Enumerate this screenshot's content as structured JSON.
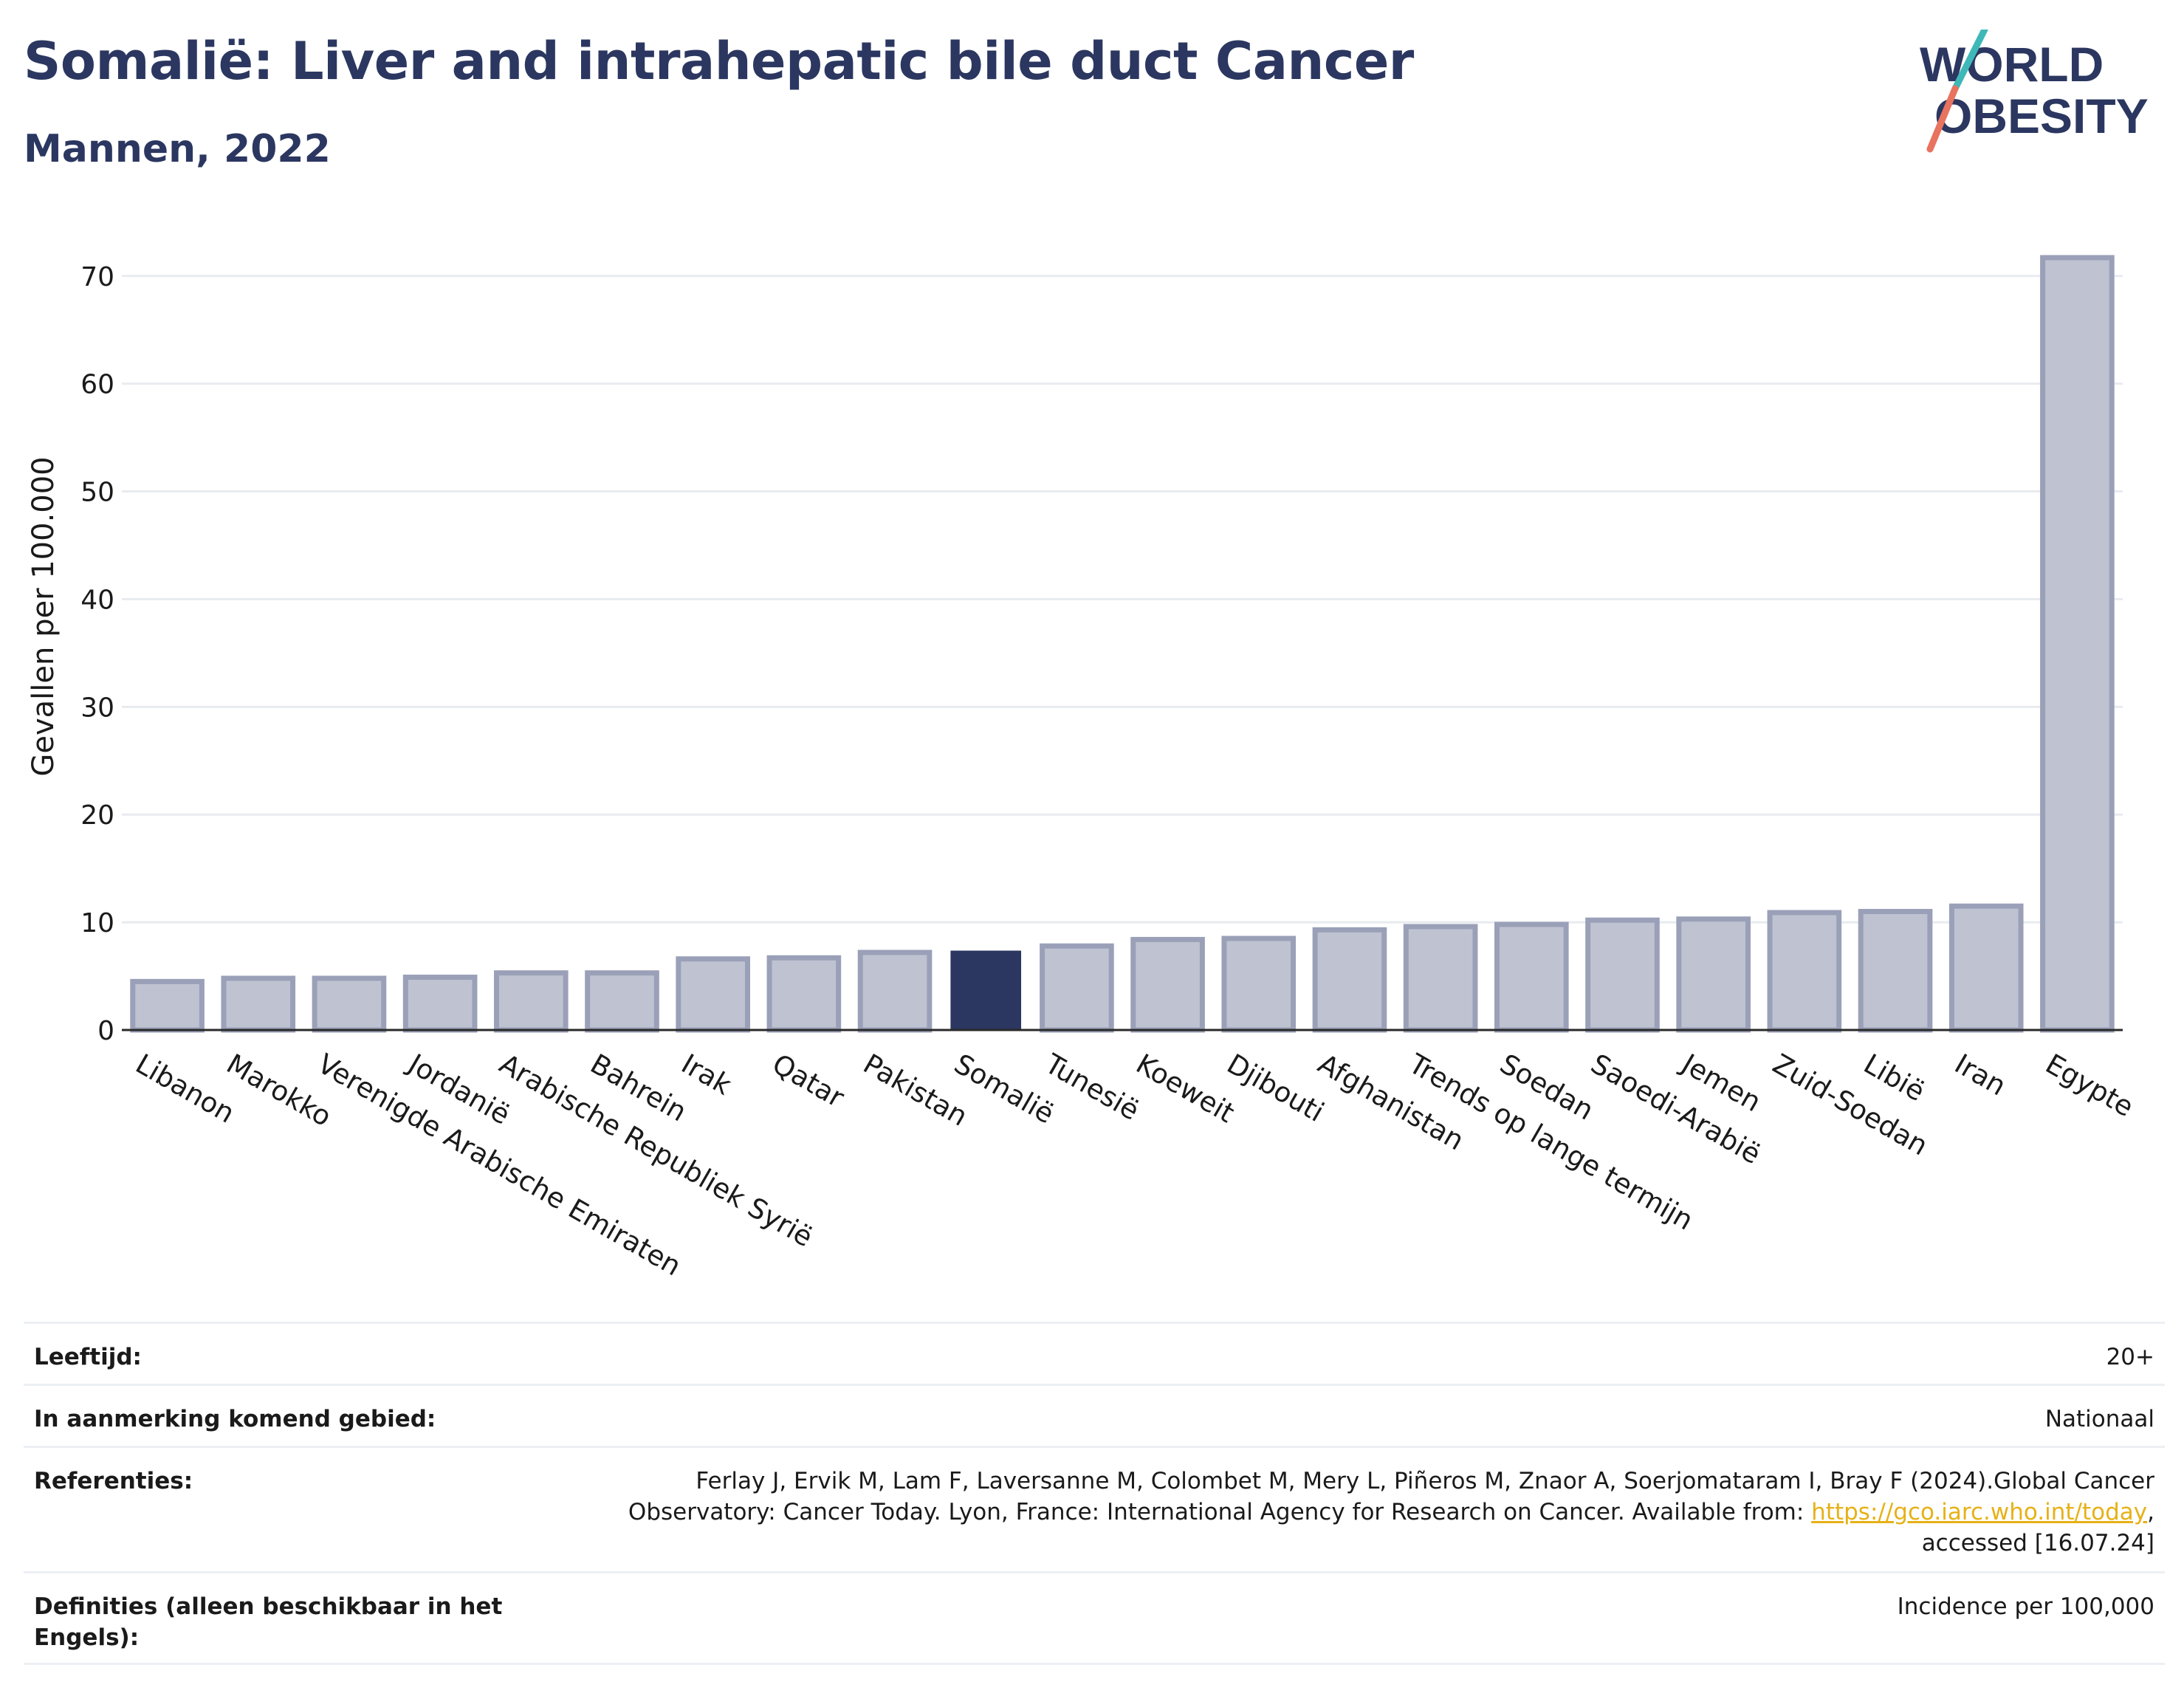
{
  "header": {
    "title": "Somalië: Liver and intrahepatic bile duct Cancer",
    "subtitle": "Mannen, 2022"
  },
  "logo": {
    "line1": "WORLD",
    "line2": "OBESITY"
  },
  "colors": {
    "highlight": "#2b3760",
    "bar_fill": "#bfc3d1",
    "bar_stroke": "#9aa0b8",
    "grid": "#e8ebef",
    "logo_text": "#2b3760",
    "logo_teal": "#3fb8b8",
    "logo_coral": "#e8735f"
  },
  "chart_data": {
    "type": "bar",
    "ylabel": "Gevallen per 100.000",
    "xlabel": "",
    "ylim": [
      0,
      73
    ],
    "yticks": [
      0,
      10,
      20,
      30,
      40,
      50,
      60,
      70
    ],
    "grid": true,
    "highlight": "Somalië",
    "categories": [
      "Libanon",
      "Marokko",
      "Verenigde Arabische Emiraten",
      "Jordanië",
      "Arabische Republiek Syrië",
      "Bahrein",
      "Irak",
      "Qatar",
      "Pakistan",
      "Somalië",
      "Tunesië",
      "Koeweit",
      "Djibouti",
      "Afghanistan",
      "Trends op lange termijn",
      "Soedan",
      "Saoedi-Arabië",
      "Jemen",
      "Zuid-Soedan",
      "Libië",
      "Iran",
      "Egypte"
    ],
    "values": [
      4.5,
      4.8,
      4.8,
      4.9,
      5.3,
      5.3,
      6.6,
      6.7,
      7.2,
      7.3,
      7.8,
      8.4,
      8.5,
      9.3,
      9.6,
      9.8,
      10.2,
      10.3,
      10.9,
      11.0,
      11.5,
      71.7
    ]
  },
  "meta": [
    {
      "label": "Leeftijd:",
      "value": "20+"
    },
    {
      "label": "In aanmerking komend gebied:",
      "value": "Nationaal"
    },
    {
      "label": "Referenties:",
      "value_pre": "Ferlay J, Ervik M, Lam F, Laversanne M, Colombet M, Mery L, Piñeros M, Znaor A, Soerjomataram I, Bray F (2024).Global Cancer Observatory: Cancer Today. Lyon, France: International Agency for Research on Cancer. Available from: ",
      "link": "https://gco.iarc.who.int/today",
      "value_post": ", accessed [16.07.24]"
    },
    {
      "label": "Definities (alleen beschikbaar in het Engels):",
      "value": "Incidence per 100,000"
    }
  ]
}
